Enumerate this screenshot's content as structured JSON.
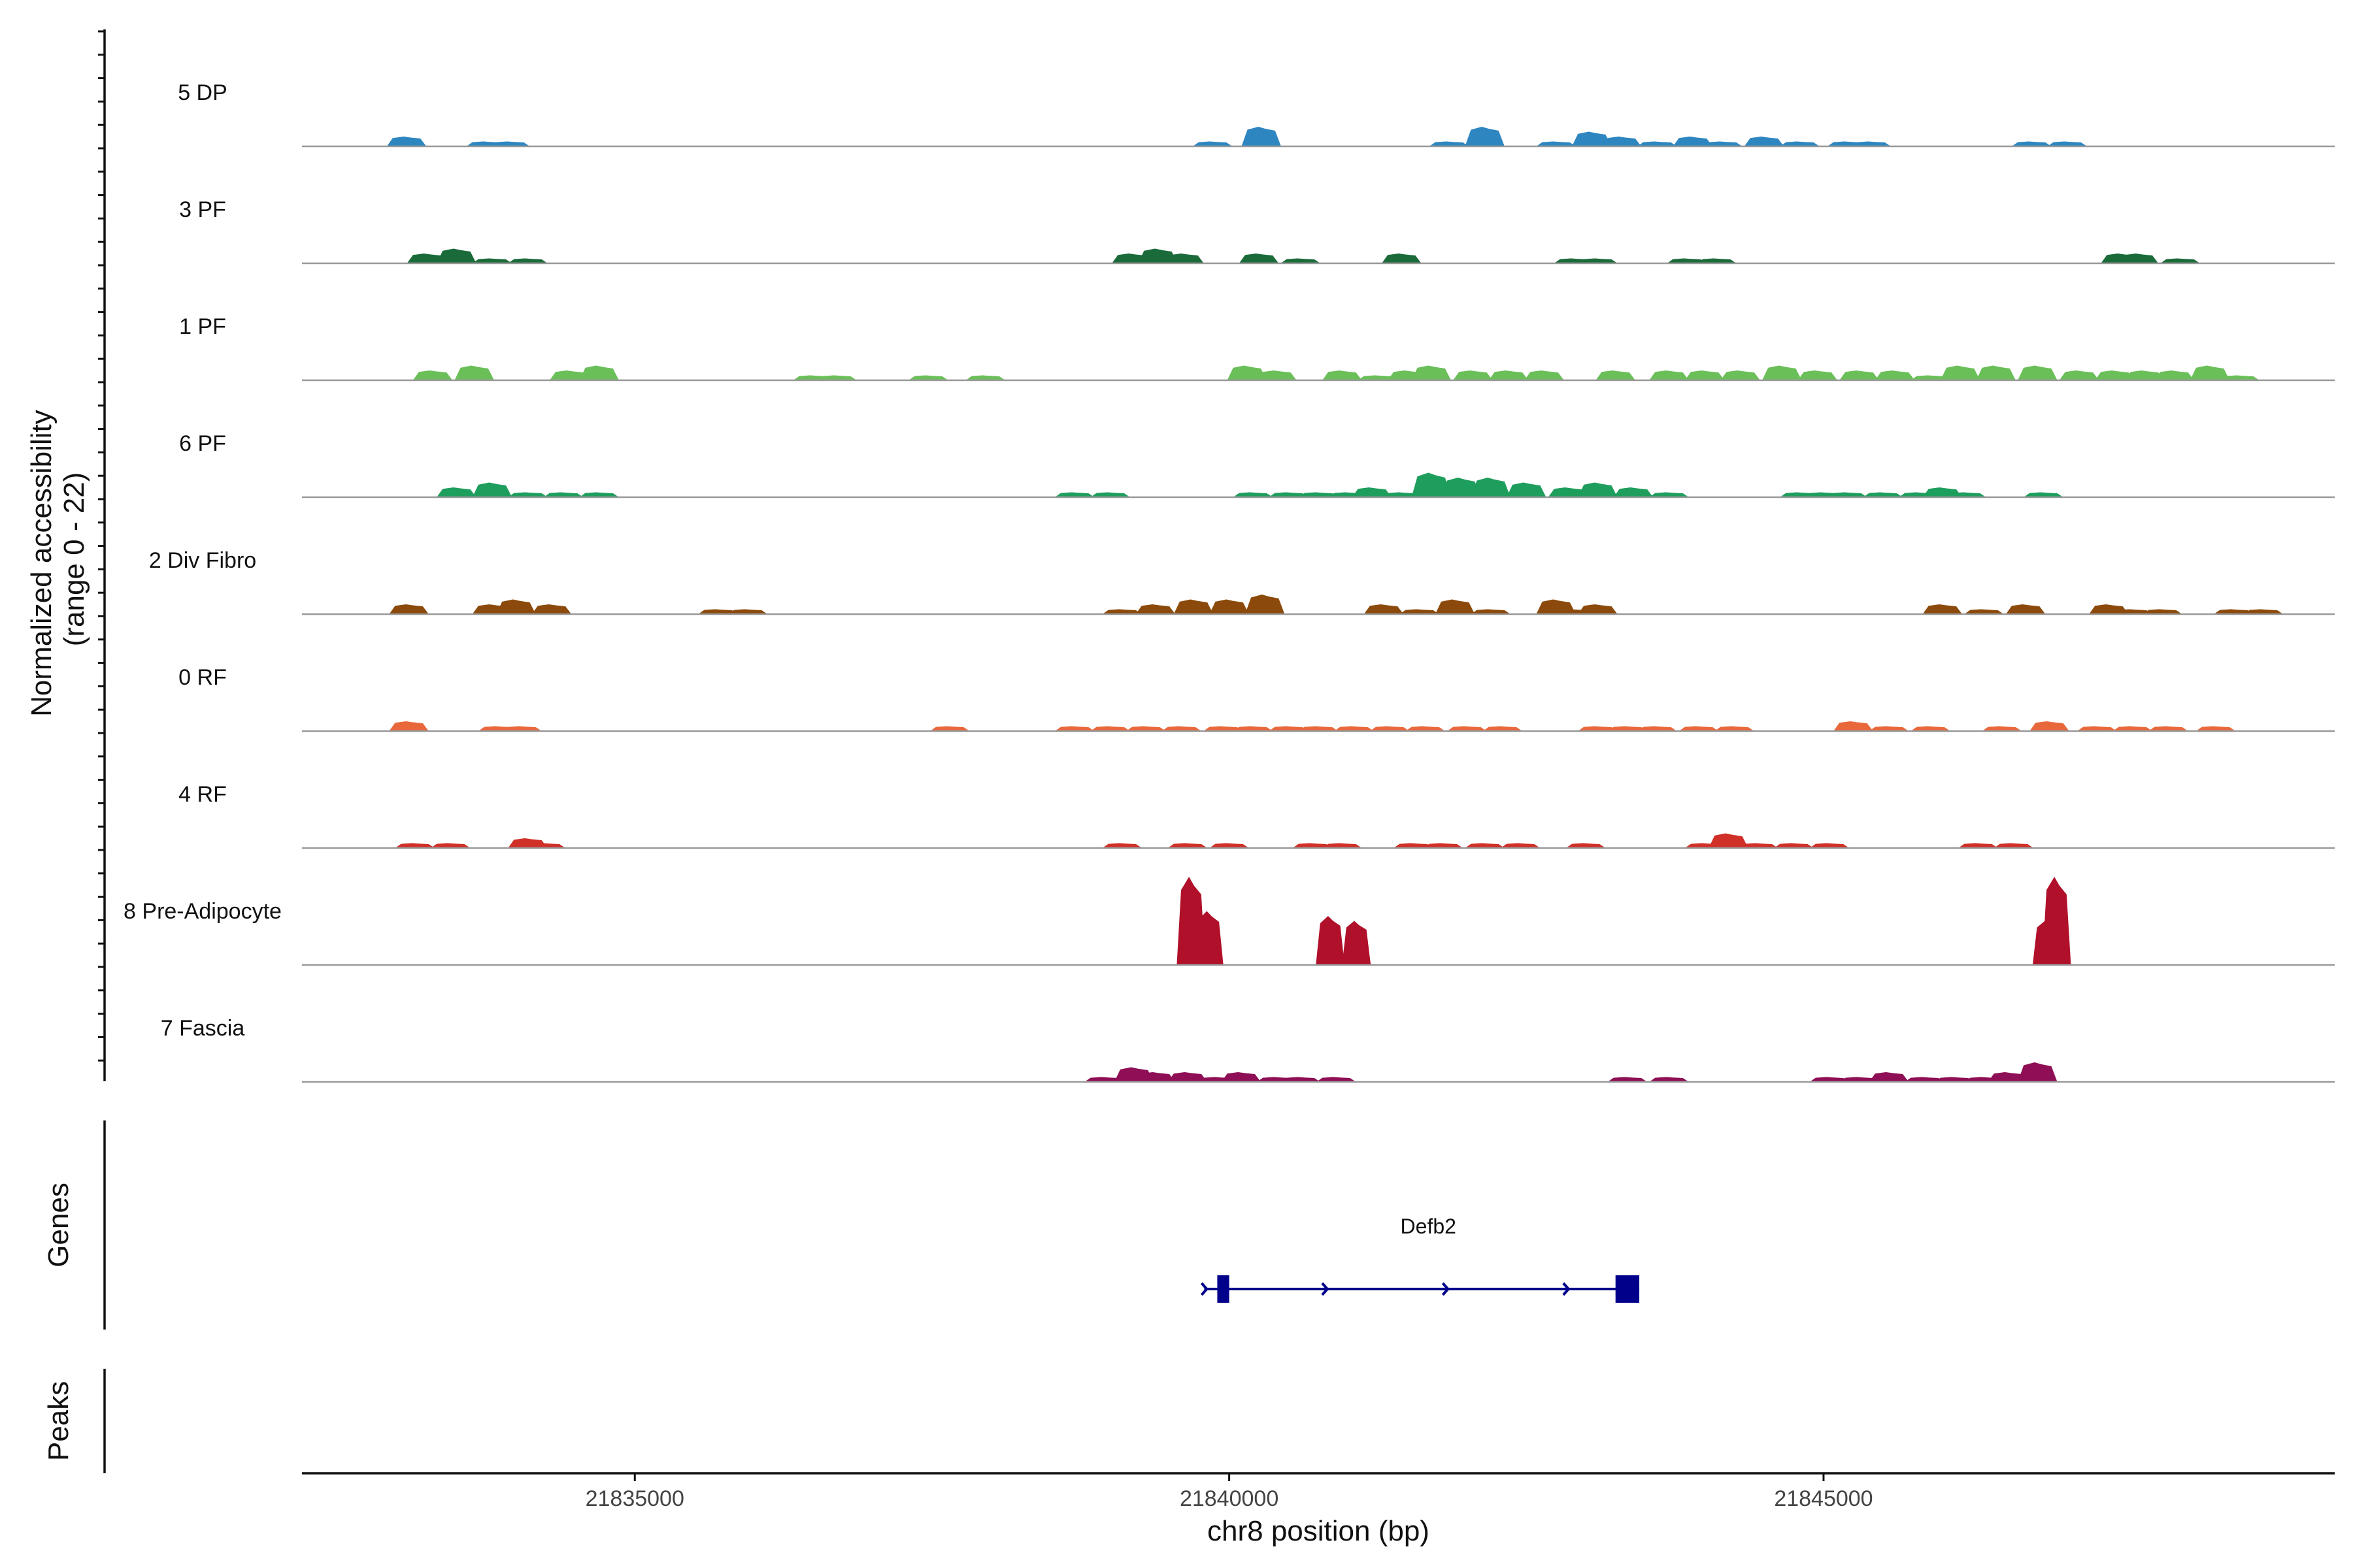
{
  "chart_data": {
    "type": "area",
    "title": "",
    "ylabel": "Normalized accessibility\n(range 0 - 22)",
    "ylabel_lines": [
      "Normalized accessibility",
      "(range 0 - 22)"
    ],
    "xlabel": "chr8 position (bp)",
    "xlim": [
      21832200,
      21849300
    ],
    "ylim": [
      0,
      22
    ],
    "x_ticks": [
      21835000,
      21840000,
      21845000
    ],
    "x_tick_labels": [
      "21835000",
      "21840000",
      "21845000"
    ],
    "tracks": [
      {
        "name": "5 DP",
        "color": "#2E86C1",
        "peaks": [
          [
            21833080,
            2
          ],
          [
            21833750,
            1
          ],
          [
            21833950,
            1
          ],
          [
            21839860,
            1
          ],
          [
            21840270,
            4
          ],
          [
            21841850,
            1
          ],
          [
            21842150,
            4
          ],
          [
            21842750,
            1
          ],
          [
            21843050,
            3
          ],
          [
            21843300,
            2
          ],
          [
            21843600,
            1
          ],
          [
            21843900,
            2
          ],
          [
            21844150,
            1
          ],
          [
            21844500,
            2
          ],
          [
            21844800,
            1
          ],
          [
            21845200,
            1
          ],
          [
            21845400,
            1
          ],
          [
            21846750,
            1
          ],
          [
            21847050,
            1
          ]
        ]
      },
      {
        "name": "3 PF",
        "color": "#1B6B3A",
        "peaks": [
          [
            21833250,
            2
          ],
          [
            21833500,
            3
          ],
          [
            21833800,
            1
          ],
          [
            21834100,
            1
          ],
          [
            21839180,
            2
          ],
          [
            21839400,
            3
          ],
          [
            21839620,
            2
          ],
          [
            21840250,
            2
          ],
          [
            21840600,
            1
          ],
          [
            21841450,
            2
          ],
          [
            21842900,
            1
          ],
          [
            21843100,
            1
          ],
          [
            21843850,
            1
          ],
          [
            21844100,
            1
          ],
          [
            21847500,
            2
          ],
          [
            21847650,
            2
          ],
          [
            21848000,
            1
          ]
        ]
      },
      {
        "name": "1 PF",
        "color": "#6BBF59",
        "peaks": [
          [
            21833300,
            2
          ],
          [
            21833650,
            3
          ],
          [
            21834450,
            2
          ],
          [
            21834700,
            3
          ],
          [
            21836500,
            1
          ],
          [
            21836700,
            1
          ],
          [
            21837470,
            1
          ],
          [
            21837950,
            1
          ],
          [
            21840150,
            3
          ],
          [
            21840400,
            2
          ],
          [
            21840950,
            2
          ],
          [
            21841250,
            1
          ],
          [
            21841500,
            2
          ],
          [
            21841700,
            3
          ],
          [
            21842050,
            2
          ],
          [
            21842350,
            2
          ],
          [
            21842650,
            2
          ],
          [
            21843250,
            2
          ],
          [
            21843700,
            2
          ],
          [
            21844000,
            2
          ],
          [
            21844300,
            2
          ],
          [
            21844650,
            3
          ],
          [
            21844950,
            2
          ],
          [
            21845300,
            2
          ],
          [
            21845600,
            2
          ],
          [
            21845900,
            1
          ],
          [
            21846150,
            3
          ],
          [
            21846450,
            3
          ],
          [
            21846800,
            3
          ],
          [
            21847150,
            2
          ],
          [
            21847450,
            2
          ],
          [
            21847700,
            2
          ],
          [
            21847950,
            2
          ],
          [
            21848250,
            3
          ],
          [
            21848500,
            1
          ]
        ]
      },
      {
        "name": "6 PF",
        "color": "#1E9E5C",
        "peaks": [
          [
            21833500,
            2
          ],
          [
            21833800,
            3
          ],
          [
            21834100,
            1
          ],
          [
            21834400,
            1
          ],
          [
            21834700,
            1
          ],
          [
            21838700,
            1
          ],
          [
            21839000,
            1
          ],
          [
            21840200,
            1
          ],
          [
            21840500,
            1
          ],
          [
            21840750,
            1
          ],
          [
            21841000,
            1
          ],
          [
            21841200,
            2
          ],
          [
            21841450,
            1
          ],
          [
            21841700,
            5
          ],
          [
            21841950,
            4
          ],
          [
            21842200,
            4
          ],
          [
            21842500,
            3
          ],
          [
            21842850,
            2
          ],
          [
            21843100,
            3
          ],
          [
            21843400,
            2
          ],
          [
            21843700,
            1
          ],
          [
            21844800,
            1
          ],
          [
            21845000,
            1
          ],
          [
            21845200,
            1
          ],
          [
            21845500,
            1
          ],
          [
            21845800,
            1
          ],
          [
            21846000,
            2
          ],
          [
            21846200,
            1
          ],
          [
            21846850,
            1
          ]
        ]
      },
      {
        "name": "2 Div Fibro",
        "color": "#8B4A0B",
        "peaks": [
          [
            21833100,
            2
          ],
          [
            21833800,
            2
          ],
          [
            21834000,
            3
          ],
          [
            21834300,
            2
          ],
          [
            21835700,
            1
          ],
          [
            21835950,
            1
          ],
          [
            21839100,
            1
          ],
          [
            21839380,
            2
          ],
          [
            21839700,
            3
          ],
          [
            21840000,
            3
          ],
          [
            21840300,
            4
          ],
          [
            21841300,
            2
          ],
          [
            21841600,
            1
          ],
          [
            21841900,
            3
          ],
          [
            21842200,
            1
          ],
          [
            21842750,
            3
          ],
          [
            21842900,
            1
          ],
          [
            21843100,
            2
          ],
          [
            21846000,
            2
          ],
          [
            21846350,
            1
          ],
          [
            21846700,
            2
          ],
          [
            21847400,
            2
          ],
          [
            21847600,
            1
          ],
          [
            21847850,
            1
          ],
          [
            21848450,
            1
          ],
          [
            21848700,
            1
          ]
        ]
      },
      {
        "name": "0 RF",
        "color": "#E8683B",
        "peaks": [
          [
            21833100,
            2
          ],
          [
            21833850,
            1
          ],
          [
            21834050,
            1
          ],
          [
            21837650,
            1
          ],
          [
            21838700,
            1
          ],
          [
            21839000,
            1
          ],
          [
            21839300,
            1
          ],
          [
            21839600,
            1
          ],
          [
            21839950,
            1
          ],
          [
            21840200,
            1
          ],
          [
            21840500,
            1
          ],
          [
            21840750,
            1
          ],
          [
            21841050,
            1
          ],
          [
            21841350,
            1
          ],
          [
            21841650,
            1
          ],
          [
            21842000,
            1
          ],
          [
            21842300,
            1
          ],
          [
            21843100,
            1
          ],
          [
            21843350,
            1
          ],
          [
            21843600,
            1
          ],
          [
            21843950,
            1
          ],
          [
            21844250,
            1
          ],
          [
            21845250,
            2
          ],
          [
            21845550,
            1
          ],
          [
            21845900,
            1
          ],
          [
            21846500,
            1
          ],
          [
            21846900,
            2
          ],
          [
            21847300,
            1
          ],
          [
            21847600,
            1
          ],
          [
            21847900,
            1
          ],
          [
            21848300,
            1
          ]
        ]
      },
      {
        "name": "4 RF",
        "color": "#D03028",
        "peaks": [
          [
            21833150,
            1
          ],
          [
            21833450,
            1
          ],
          [
            21834100,
            2
          ],
          [
            21834250,
            1
          ],
          [
            21839100,
            1
          ],
          [
            21839650,
            1
          ],
          [
            21840000,
            1
          ],
          [
            21840700,
            1
          ],
          [
            21840950,
            1
          ],
          [
            21841550,
            1
          ],
          [
            21841800,
            1
          ],
          [
            21842150,
            1
          ],
          [
            21842450,
            1
          ],
          [
            21843000,
            1
          ],
          [
            21844000,
            1
          ],
          [
            21844200,
            3
          ],
          [
            21844450,
            1
          ],
          [
            21844750,
            1
          ],
          [
            21845050,
            1
          ],
          [
            21846300,
            1
          ],
          [
            21846600,
            1
          ]
        ]
      },
      {
        "name": "8 Pre-Adipocyte",
        "color": "#B0102A",
        "peaks": [
          [
            21839680,
            18
          ],
          [
            21839830,
            11
          ],
          [
            21840850,
            10
          ],
          [
            21841070,
            9
          ],
          [
            21846880,
            9
          ],
          [
            21846960,
            18
          ]
        ]
      },
      {
        "name": "7 Fascia",
        "color": "#8E0F55",
        "peaks": [
          [
            21838950,
            1
          ],
          [
            21839200,
            3
          ],
          [
            21839380,
            2
          ],
          [
            21839650,
            2
          ],
          [
            21839900,
            1
          ],
          [
            21840100,
            2
          ],
          [
            21840400,
            1
          ],
          [
            21840600,
            1
          ],
          [
            21840900,
            1
          ],
          [
            21843350,
            1
          ],
          [
            21843700,
            1
          ],
          [
            21845050,
            1
          ],
          [
            21845300,
            1
          ],
          [
            21845550,
            2
          ],
          [
            21845850,
            1
          ],
          [
            21846100,
            1
          ],
          [
            21846350,
            1
          ],
          [
            21846550,
            2
          ],
          [
            21846800,
            4
          ]
        ]
      }
    ],
    "genes": [
      {
        "name": "Defb2",
        "start": 21839900,
        "end": 21843450,
        "strand": "+",
        "exons": [
          [
            21839900,
            21840000
          ],
          [
            21843250,
            21843450
          ]
        ]
      }
    ],
    "peaks_track": [],
    "side_labels": [
      "Genes",
      "Peaks"
    ]
  }
}
